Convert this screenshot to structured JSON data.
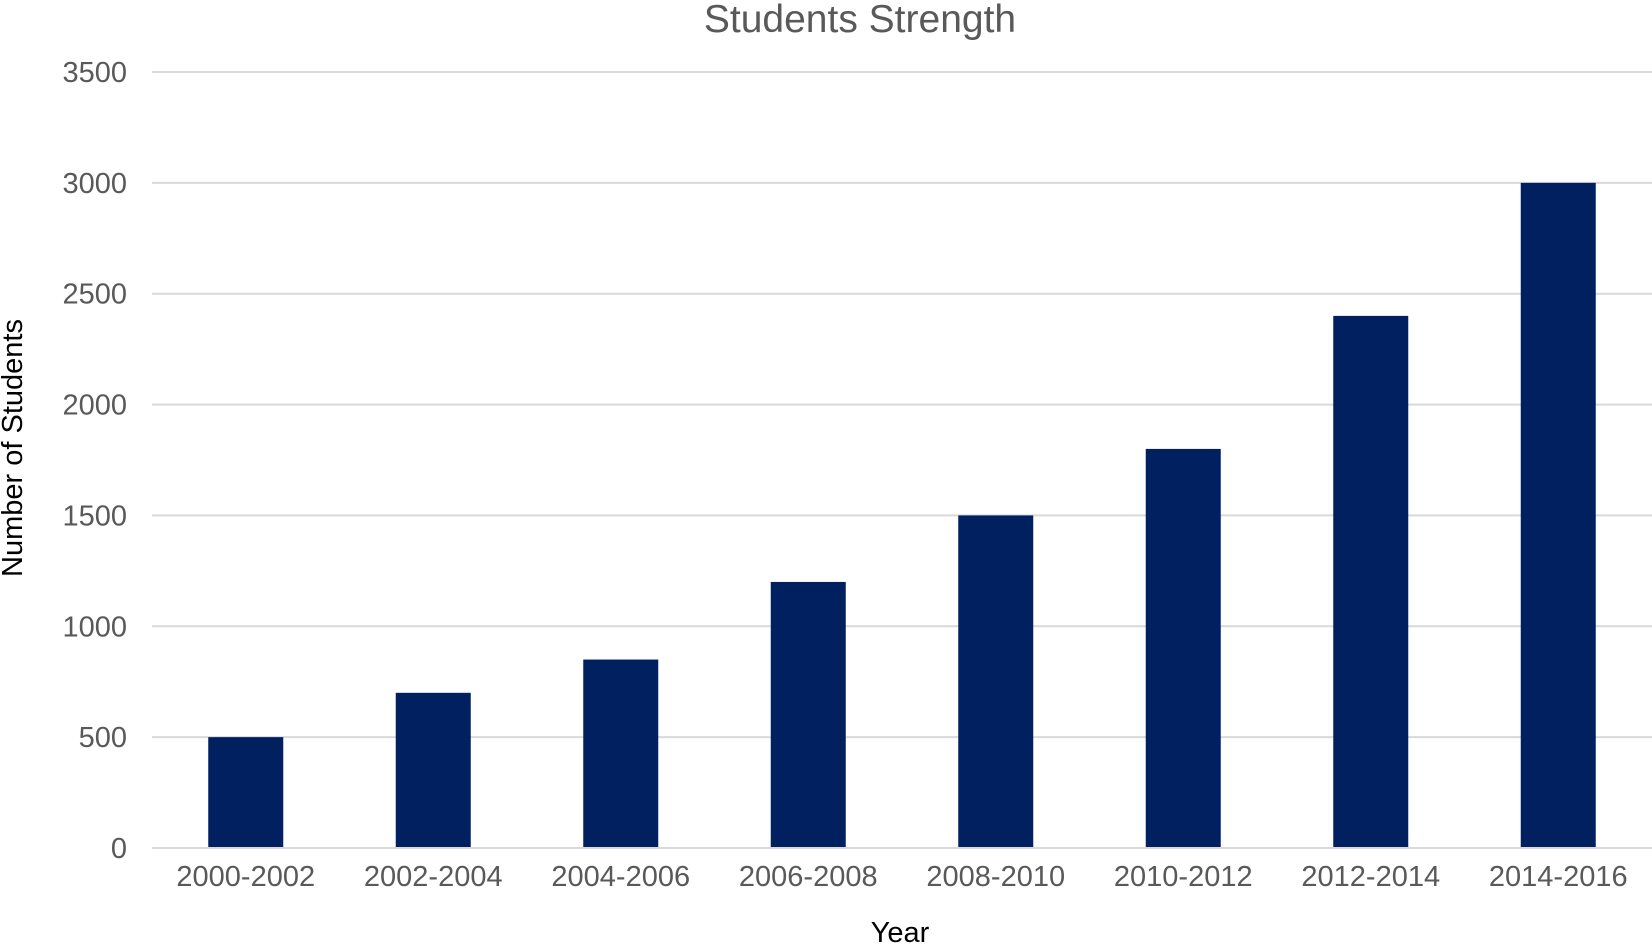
{
  "chart_data": {
    "type": "bar",
    "title": "Students Strength",
    "xlabel": "Year",
    "ylabel": "Number of Students",
    "categories": [
      "2000-2002",
      "2002-2004",
      "2004-2006",
      "2006-2008",
      "2008-2010",
      "2010-2012",
      "2012-2014",
      "2014-2016"
    ],
    "values": [
      500,
      700,
      850,
      1200,
      1500,
      1800,
      2400,
      3000
    ],
    "ylim": [
      0,
      3500
    ],
    "yticks": [
      0,
      500,
      1000,
      1500,
      2000,
      2500,
      3000,
      3500
    ],
    "grid": true,
    "legend": "none",
    "bar_color": "#002060"
  }
}
